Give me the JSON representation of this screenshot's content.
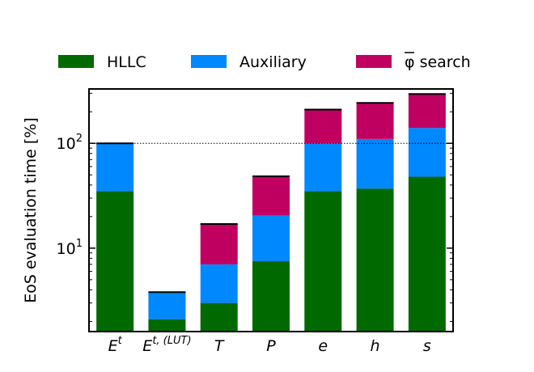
{
  "chart_data": {
    "type": "bar",
    "stacked": true,
    "yscale": "log",
    "ylabel": "EoS evaluation time [%]",
    "ylim": [
      1.6,
      330
    ],
    "yticks": [
      {
        "value": 10,
        "base": "10",
        "exp": "1"
      },
      {
        "value": 100,
        "base": "10",
        "exp": "2"
      }
    ],
    "reference_line": {
      "y": 100,
      "style": "dotted"
    },
    "legend_position": "top",
    "categories": [
      {
        "base": "E",
        "sup": "t"
      },
      {
        "base": "E",
        "sup": "t, (LUT)"
      },
      {
        "base": "T",
        "sup": ""
      },
      {
        "base": "P",
        "sup": ""
      },
      {
        "base": "e",
        "sup": ""
      },
      {
        "base": "h",
        "sup": ""
      },
      {
        "base": "s",
        "sup": ""
      }
    ],
    "series": [
      {
        "name": "HLLC",
        "color": "#006a00",
        "values": [
          35,
          2.1,
          3.0,
          7.5,
          35,
          37,
          48
        ]
      },
      {
        "name": "Auxiliary",
        "color": "#0088ff",
        "values": [
          65,
          1.7,
          4.0,
          13,
          65,
          73,
          92
        ]
      },
      {
        "name": "φ search",
        "color": "#bf0060",
        "values": [
          0,
          0,
          10,
          28,
          110,
          133,
          155
        ]
      }
    ]
  }
}
